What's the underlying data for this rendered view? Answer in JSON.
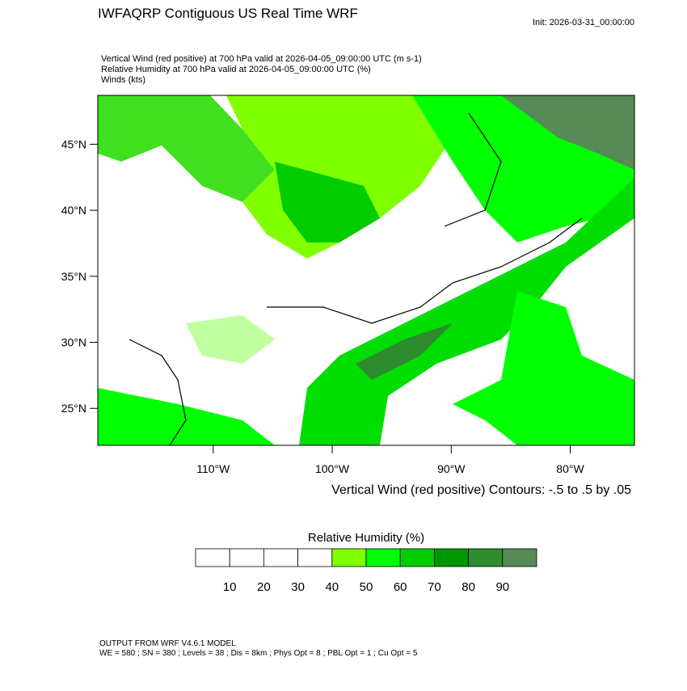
{
  "header": {
    "title": "IWFAQRP Contiguous US Real Time WRF",
    "init": "Init: 2026-03-31_00:00:00",
    "lines": [
      "Vertical Wind (red positive) at 700 hPa valid at 2026-04-05_09:00:00 UTC   (m s-1)",
      "Relative Humidity at 700 hPa valid at 2026-04-05_09:00:00 UTC   (%)",
      "Winds   (kts)"
    ]
  },
  "map": {
    "xlim": [
      -119.7,
      -74.6
    ],
    "ylim": [
      22.2,
      48.7
    ],
    "yticks": [
      {
        "value": 45,
        "label": "45°N"
      },
      {
        "value": 40,
        "label": "40°N"
      },
      {
        "value": 35,
        "label": "35°N"
      },
      {
        "value": 30,
        "label": "30°N"
      },
      {
        "value": 25,
        "label": "25°N"
      }
    ],
    "xticks": [
      {
        "value": -110,
        "label": "110°W"
      },
      {
        "value": -100,
        "label": "100°W"
      },
      {
        "value": -90,
        "label": "90°W"
      },
      {
        "value": -80,
        "label": "80°W"
      }
    ],
    "contour_note": "Vertical Wind (red positive) Contours: -.5 to .5 by .05"
  },
  "colorbar": {
    "title": "Relative Humidity  (%)",
    "levels": [
      10,
      20,
      30,
      40,
      50,
      60,
      70,
      80,
      90
    ],
    "colors": [
      "#ffffff",
      "#ffffff",
      "#ffffff",
      "#ffffff",
      "#80ff00",
      "#00ff00",
      "#00cc00",
      "#009600",
      "#2e8b2e",
      "#568a56"
    ]
  },
  "footer": {
    "lines": [
      "OUTPUT FROM WRF V4.6.1 MODEL",
      "WE = 580 ; SN = 380 ; Levels = 38 ; Dis = 8km ; Phys Opt = 8 ; PBL Opt = 1 ; Cu Opt = 5"
    ]
  }
}
